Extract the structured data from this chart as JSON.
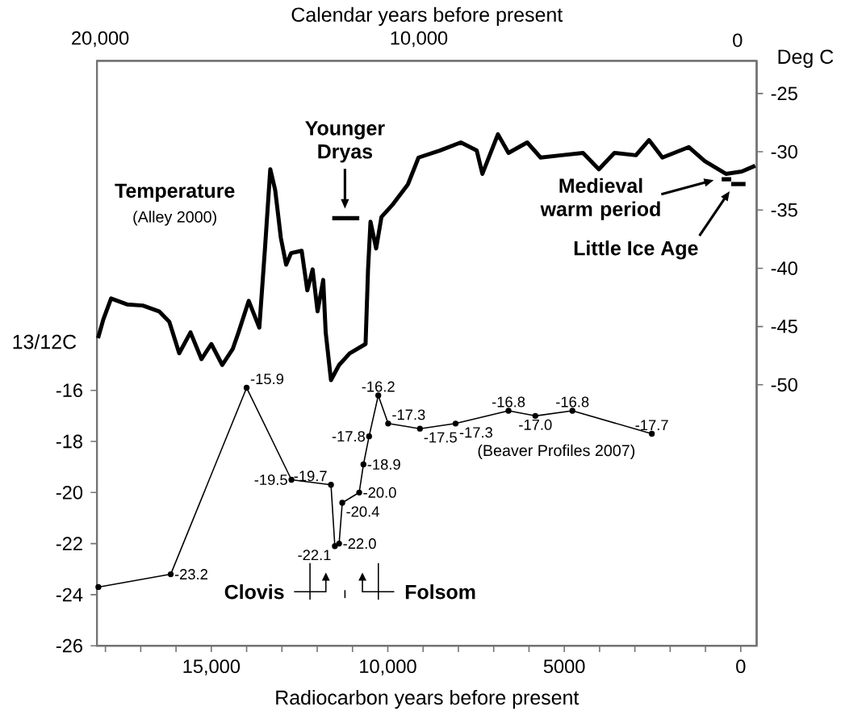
{
  "chart_data": {
    "type": "line",
    "xlabel": "Radiocarbon years before present",
    "x2label": "Calendar years before present",
    "ylabel": "13/12C",
    "y2label": "Deg C",
    "xlim": [
      18240,
      -450
    ],
    "xticks": [
      {
        "value": 18000,
        "label": null
      },
      {
        "value": 17000,
        "label": null
      },
      {
        "value": 16000,
        "label": null
      },
      {
        "value": 15000,
        "label": "15,000"
      },
      {
        "value": 14000,
        "label": null
      },
      {
        "value": 13000,
        "label": null
      },
      {
        "value": 12000,
        "label": null
      },
      {
        "value": 11000,
        "label": null
      },
      {
        "value": 10000,
        "label": "10,000"
      },
      {
        "value": 9000,
        "label": null
      },
      {
        "value": 8000,
        "label": null
      },
      {
        "value": 7000,
        "label": null
      },
      {
        "value": 6000,
        "label": null
      },
      5000,
      {
        "value": 4000,
        "label": null
      },
      {
        "value": 3000,
        "label": null
      },
      {
        "value": 2000,
        "label": null
      },
      {
        "value": 1000,
        "label": null
      },
      0
    ],
    "x2lim": [
      20100,
      -600
    ],
    "x2ticks": [
      {
        "value": 20000,
        "label": "20,000"
      },
      {
        "value": 10000,
        "label": "10,000"
      },
      0
    ],
    "ylim": [
      -26,
      -3.1
    ],
    "yticks": [
      -26,
      -24,
      -22,
      -20,
      -18,
      -16
    ],
    "y2lim": [
      -72.4,
      -22.2
    ],
    "y2ticks": [
      -50,
      -45,
      -40,
      -35,
      -30,
      -25
    ],
    "series": [
      {
        "axis": "y2",
        "color": "#000000",
        "marker": "none",
        "x": [
          18210,
          18060,
          17840,
          17390,
          16940,
          16480,
          16190,
          15910,
          15590,
          15280,
          15000,
          14690,
          14390,
          14230,
          13940,
          13640,
          13480,
          13330,
          13190,
          13030,
          12880,
          12740,
          12440,
          12280,
          12130,
          11990,
          11830,
          11760,
          11610,
          11380,
          11080,
          10630,
          10560,
          10490,
          10330,
          10180,
          9880,
          9430,
          9130,
          8530,
          7930,
          7480,
          7320,
          6880,
          6580,
          6050,
          5670,
          5080,
          4470,
          4020,
          3580,
          2970,
          2600,
          2220,
          1470,
          1020,
          420,
          -30,
          -410
        ],
        "values": [
          -46.0,
          -44.4,
          -42.6,
          -43.1,
          -43.2,
          -43.7,
          -44.6,
          -47.3,
          -45.5,
          -47.8,
          -46.5,
          -48.3,
          -46.9,
          -45.5,
          -42.8,
          -45.1,
          -38.3,
          -31.5,
          -33.3,
          -37.4,
          -39.7,
          -38.7,
          -38.5,
          -41.9,
          -40.1,
          -43.7,
          -41.0,
          -45.5,
          -49.6,
          -48.3,
          -47.3,
          -46.5,
          -40.1,
          -36.0,
          -38.3,
          -35.6,
          -34.6,
          -32.8,
          -30.5,
          -29.9,
          -29.2,
          -29.9,
          -31.9,
          -28.5,
          -30.1,
          -29.2,
          -30.5,
          -30.3,
          -30.1,
          -31.5,
          -30.1,
          -30.3,
          -29.0,
          -30.5,
          -29.6,
          -30.8,
          -31.9,
          -31.7,
          -31.2
        ]
      },
      {
        "color": "#000000",
        "marker": "circle",
        "x": [
          18200,
          16150,
          14000,
          12730,
          11610,
          11500,
          11380,
          11290,
          10810,
          10690,
          10530,
          10270,
          9990,
          9090,
          8080,
          6580,
          5820,
          4770,
          2520
        ],
        "values": [
          -23.7,
          -23.2,
          -15.9,
          -19.5,
          -19.7,
          -22.1,
          -22.0,
          -20.4,
          -20.0,
          -18.9,
          -17.8,
          -16.2,
          -17.3,
          -17.5,
          -17.3,
          -16.8,
          -17.0,
          -16.8,
          -17.7
        ],
        "value_labels": [
          null,
          "-23.2",
          "-15.9",
          "-19.5",
          "-19.7",
          "-22.1",
          "-22.0",
          "-20.4",
          "-20.0",
          "-18.9",
          "-17.8",
          "-16.2",
          "-17.3",
          "-17.5",
          "-17.3",
          "-16.8",
          "-17.0",
          "-16.8",
          "-17.7"
        ]
      }
    ],
    "annotations": [
      "Temperature",
      "(Alley 2000)",
      "Younger Dryas",
      "Medieval warm period",
      "Little Ice Age",
      "(Beaver Profiles 2007)",
      "Clovis",
      "Folsom"
    ]
  }
}
